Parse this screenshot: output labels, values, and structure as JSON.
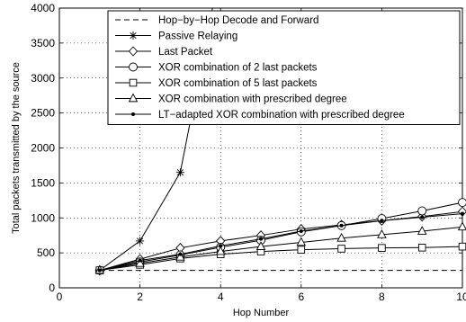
{
  "chart_data": {
    "type": "line",
    "xlabel": "Hop Number",
    "ylabel": "Total packets transmitted by the source",
    "xlim": [
      0,
      10
    ],
    "ylim": [
      0,
      4000
    ],
    "xticks": [
      "0",
      "2",
      "4",
      "6",
      "8",
      "10"
    ],
    "yticks": [
      "0",
      "500",
      "1000",
      "1500",
      "2000",
      "2500",
      "3000",
      "3500",
      "4000"
    ],
    "grid": true,
    "legend_position": "top-right",
    "series": [
      {
        "name": "Hop−by−Hop Decode and Forward",
        "marker": "none",
        "dash": true,
        "x": [
          1,
          2,
          3,
          4,
          5,
          6,
          7,
          8,
          9,
          10
        ],
        "y": [
          250,
          250,
          250,
          250,
          250,
          250,
          250,
          250,
          250,
          250
        ]
      },
      {
        "name": "Passive Relaying",
        "marker": "star",
        "x": [
          1,
          2,
          3,
          3.8
        ],
        "y": [
          250,
          670,
          1650,
          4000
        ]
      },
      {
        "name": "Last Packet",
        "marker": "diamond",
        "x": [
          1,
          2,
          3,
          4,
          5,
          6,
          7,
          8,
          9,
          10
        ],
        "y": [
          250,
          410,
          570,
          670,
          750,
          840,
          900,
          960,
          1020,
          1090
        ]
      },
      {
        "name": "XOR combination of 2 last packets",
        "marker": "circle",
        "x": [
          1,
          2,
          3,
          4,
          5,
          6,
          7,
          8,
          9,
          10
        ],
        "y": [
          250,
          370,
          470,
          580,
          680,
          800,
          890,
          990,
          1100,
          1220
        ]
      },
      {
        "name": "XOR combination of 5 last packets",
        "marker": "square",
        "x": [
          1,
          2,
          3,
          4,
          5,
          6,
          7,
          8,
          9,
          10
        ],
        "y": [
          250,
          330,
          420,
          480,
          520,
          545,
          560,
          570,
          575,
          590
        ]
      },
      {
        "name": "XOR combination with prescribed degree",
        "marker": "triangle",
        "x": [
          1,
          2,
          3,
          4,
          5,
          6,
          7,
          8,
          9,
          10
        ],
        "y": [
          250,
          350,
          440,
          520,
          590,
          650,
          710,
          760,
          810,
          870
        ]
      },
      {
        "name": "LT−adapted XOR combination with prescribed degree",
        "marker": "dot",
        "x": [
          1,
          2,
          3,
          4,
          5,
          6,
          7,
          8,
          9,
          10
        ],
        "y": [
          250,
          390,
          480,
          600,
          700,
          810,
          890,
          960,
          1010,
          1060
        ]
      }
    ]
  }
}
